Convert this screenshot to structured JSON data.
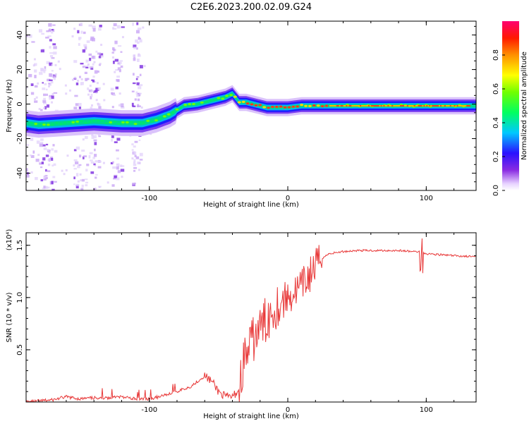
{
  "title": "C2E6.2023.200.02.09.G24",
  "chart_data": [
    {
      "type": "heatmap",
      "xlabel": "Height of straight line (km)",
      "ylabel": "Frequency (Hz)",
      "xlim": [
        -189,
        136
      ],
      "ylim": [
        -50,
        48
      ],
      "x_ticks": [
        -100,
        0,
        100
      ],
      "y_ticks": [
        -40,
        -20,
        0,
        20,
        40
      ],
      "x_tick_labels": [
        "-100",
        "0",
        "100"
      ],
      "y_tick_labels": [
        "-40",
        "-20",
        "0",
        "20",
        "40"
      ],
      "ridge_x": [
        -189,
        -180,
        -160,
        -140,
        -120,
        -105,
        -95,
        -85,
        -75,
        -65,
        -55,
        -45,
        -40,
        -38,
        -35,
        -30,
        -25,
        -20,
        -15,
        -10,
        0,
        10,
        20,
        40,
        60,
        80,
        100,
        120,
        136
      ],
      "ridge_freq": [
        -11,
        -12,
        -11,
        -10,
        -11,
        -11,
        -9,
        -6,
        -1,
        0,
        2,
        4,
        6,
        4,
        1,
        1,
        0,
        -1,
        -2,
        -2,
        -2,
        -1,
        -1,
        -1,
        -1,
        -1,
        -1,
        -1,
        -1
      ],
      "colorbar": {
        "label": "Normalized spectral amplitude",
        "ticks": [
          0.0,
          0.2,
          0.4,
          0.6,
          0.8
        ],
        "tick_labels": [
          "0.0",
          "0.2",
          "0.4",
          "0.6",
          "0.8"
        ],
        "range": [
          0,
          1
        ]
      }
    },
    {
      "type": "line",
      "xlabel": "Height of straight line (km)",
      "ylabel": "SNR (10 * v/v)",
      "scale_label": "(x10⁴)",
      "xlim": [
        -189,
        136
      ],
      "ylim": [
        0,
        1.62
      ],
      "x_ticks": [
        -100,
        0,
        100
      ],
      "y_ticks": [
        0.5,
        1.0,
        1.5
      ],
      "x_tick_labels": [
        "-100",
        "0",
        "100"
      ],
      "y_tick_labels": [
        "0.5",
        "1.0",
        "1.5"
      ],
      "color": "#e83a3a",
      "x": [
        -189,
        -170,
        -160,
        -150,
        -140,
        -130,
        -120,
        -110,
        -100,
        -90,
        -80,
        -70,
        -60,
        -55,
        -50,
        -45,
        -40,
        -35,
        -32,
        -28,
        -25,
        -20,
        -15,
        -10,
        -5,
        0,
        5,
        10,
        15,
        20,
        25,
        30,
        40,
        50,
        60,
        70,
        80,
        90,
        95,
        100,
        110,
        120,
        136
      ],
      "y": [
        0.0,
        0.02,
        0.05,
        0.03,
        0.04,
        0.04,
        0.05,
        0.03,
        0.03,
        0.06,
        0.1,
        0.15,
        0.25,
        0.2,
        0.1,
        0.05,
        0.05,
        0.12,
        0.4,
        0.5,
        0.6,
        0.7,
        0.8,
        0.9,
        0.95,
        1.0,
        1.05,
        1.1,
        1.2,
        1.3,
        1.38,
        1.42,
        1.44,
        1.45,
        1.45,
        1.45,
        1.45,
        1.44,
        1.44,
        1.42,
        1.41,
        1.4,
        1.39
      ]
    }
  ]
}
